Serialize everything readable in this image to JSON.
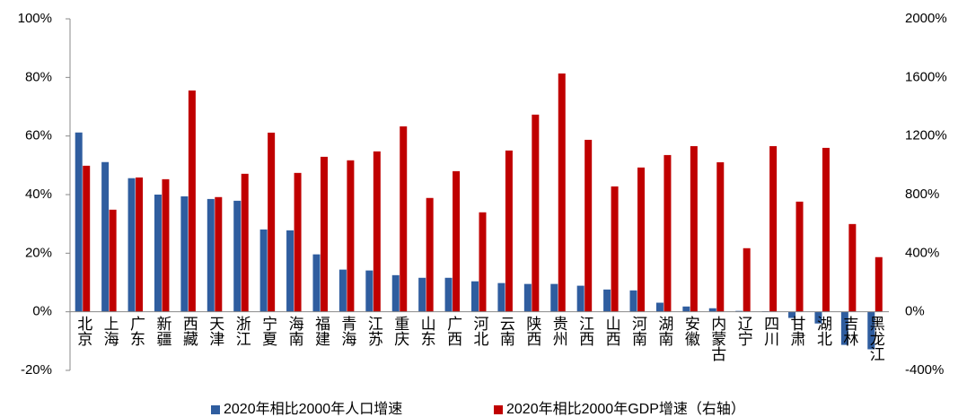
{
  "chart_data": {
    "type": "bar",
    "categories": [
      "北京",
      "上海",
      "广东",
      "新疆",
      "西藏",
      "天津",
      "浙江",
      "宁夏",
      "海南",
      "福建",
      "青海",
      "江苏",
      "重庆",
      "山东",
      "广西",
      "河北",
      "云南",
      "陕西",
      "贵州",
      "江西",
      "山西",
      "河南",
      "湖南",
      "安徽",
      "内蒙古",
      "辽宁",
      "四川",
      "甘肃",
      "湖北",
      "吉林",
      "黑龙江"
    ],
    "series": [
      {
        "name": "2020年相比2000年人口增速",
        "color": "#2f5d9f",
        "values": [
          61.2,
          51.1,
          45.6,
          40,
          39.4,
          38.5,
          37.9,
          28.1,
          27.8,
          19.6,
          14.4,
          14.1,
          12.5,
          11.6,
          11.6,
          10.4,
          9.8,
          9.5,
          9.5,
          8.9,
          7.6,
          7.3,
          3.1,
          1.8,
          1.2,
          0.3,
          0.2,
          -2.1,
          -4.0,
          -11.3,
          -12.8
        ]
      },
      {
        "name": "2020年相比2000年GDP增速（右轴）",
        "color": "#c00000",
        "axis": "y2",
        "values": [
          997,
          697,
          917,
          905,
          1511,
          783,
          942,
          1223,
          948,
          1058,
          1034,
          1095,
          1266,
          777,
          960,
          679,
          1101,
          1346,
          1627,
          1174,
          856,
          985,
          1070,
          1131,
          1021,
          434,
          1131,
          752,
          1119,
          599,
          373
        ]
      }
    ],
    "ylim": [
      -20,
      100
    ],
    "yticks": [
      {
        "value": -20,
        "label": "-20%"
      },
      {
        "value": 0,
        "label": "0%"
      },
      {
        "value": 20,
        "label": "20%"
      },
      {
        "value": 40,
        "label": "40%"
      },
      {
        "value": 60,
        "label": "60%"
      },
      {
        "value": 80,
        "label": "80%"
      },
      {
        "value": 100,
        "label": "100%"
      }
    ],
    "y2lim": [
      -400,
      2000
    ],
    "y2ticks": [
      {
        "value": -400,
        "label": "-400%"
      },
      {
        "value": 0,
        "label": "0%"
      },
      {
        "value": 400,
        "label": "400%"
      },
      {
        "value": 800,
        "label": "800%"
      },
      {
        "value": 1200,
        "label": "1200%"
      },
      {
        "value": 1600,
        "label": "1600%"
      },
      {
        "value": 2000,
        "label": "2000%"
      }
    ],
    "legend": "bottom"
  }
}
